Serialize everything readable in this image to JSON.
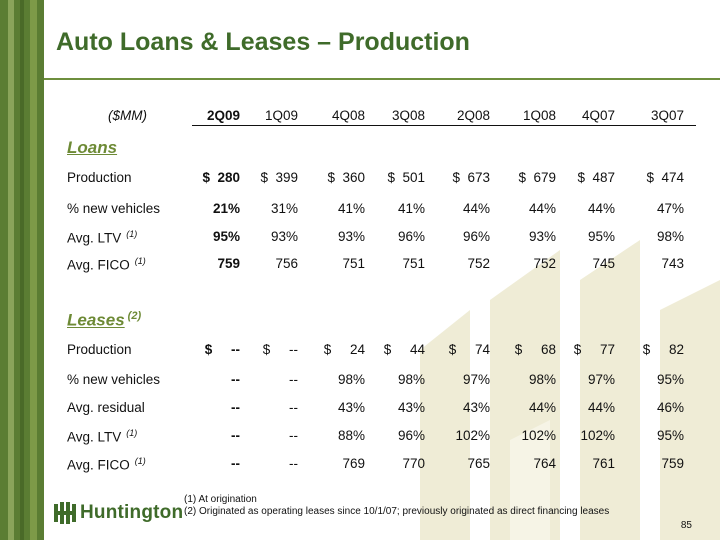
{
  "title": "Auto Loans & Leases – Production",
  "units": "($MM)",
  "columns": [
    "2Q09",
    "1Q09",
    "4Q08",
    "3Q08",
    "2Q08",
    "1Q08",
    "4Q07",
    "3Q07"
  ],
  "loans": {
    "heading": "Loans",
    "rows": [
      {
        "label": "Production",
        "values": [
          "$  280",
          "$  399",
          "$  360",
          "$  501",
          "$  673",
          "$  679",
          "$  487",
          "$  474"
        ]
      },
      {
        "label": "% new vehicles",
        "values": [
          "21%",
          "31%",
          "41%",
          "41%",
          "44%",
          "44%",
          "44%",
          "47%"
        ]
      },
      {
        "label": "Avg. LTV",
        "note": "(1)",
        "values": [
          "95%",
          "93%",
          "93%",
          "96%",
          "96%",
          "93%",
          "95%",
          "98%"
        ]
      },
      {
        "label": "Avg. FICO",
        "note": "(1)",
        "values": [
          "759",
          "756",
          "751",
          "751",
          "752",
          "752",
          "745",
          "743"
        ]
      }
    ]
  },
  "leases": {
    "heading": "Leases",
    "note": "(2)",
    "rows": [
      {
        "label": "Production",
        "values": [
          "$     --",
          "$     --",
          "$     24",
          "$     44",
          "$     74",
          "$     68",
          "$     77",
          "$     82"
        ]
      },
      {
        "label": "% new vehicles",
        "values": [
          "--",
          "--",
          "98%",
          "98%",
          "97%",
          "98%",
          "97%",
          "95%"
        ]
      },
      {
        "label": "Avg. residual",
        "values": [
          "--",
          "--",
          "43%",
          "43%",
          "43%",
          "44%",
          "44%",
          "46%"
        ]
      },
      {
        "label": "Avg. LTV",
        "note": "(1)",
        "values": [
          "--",
          "--",
          "88%",
          "96%",
          "102%",
          "102%",
          "102%",
          "95%"
        ]
      },
      {
        "label": "Avg. FICO",
        "note": "(1)",
        "values": [
          "--",
          "--",
          "769",
          "770",
          "765",
          "764",
          "761",
          "759"
        ]
      }
    ]
  },
  "footnotes": [
    "(1)  At origination",
    "(2)  Originated as operating leases since 10/1/07; previously originated as direct financing leases"
  ],
  "logo": {
    "text": "Huntington",
    "icon": "huntington-logo-icon"
  },
  "page_number": "85",
  "colors": {
    "brand_green": "#3f6b2a",
    "sidebar": "#5b7d33",
    "section": "#6d8a35",
    "watermark": "#ece9d2"
  }
}
